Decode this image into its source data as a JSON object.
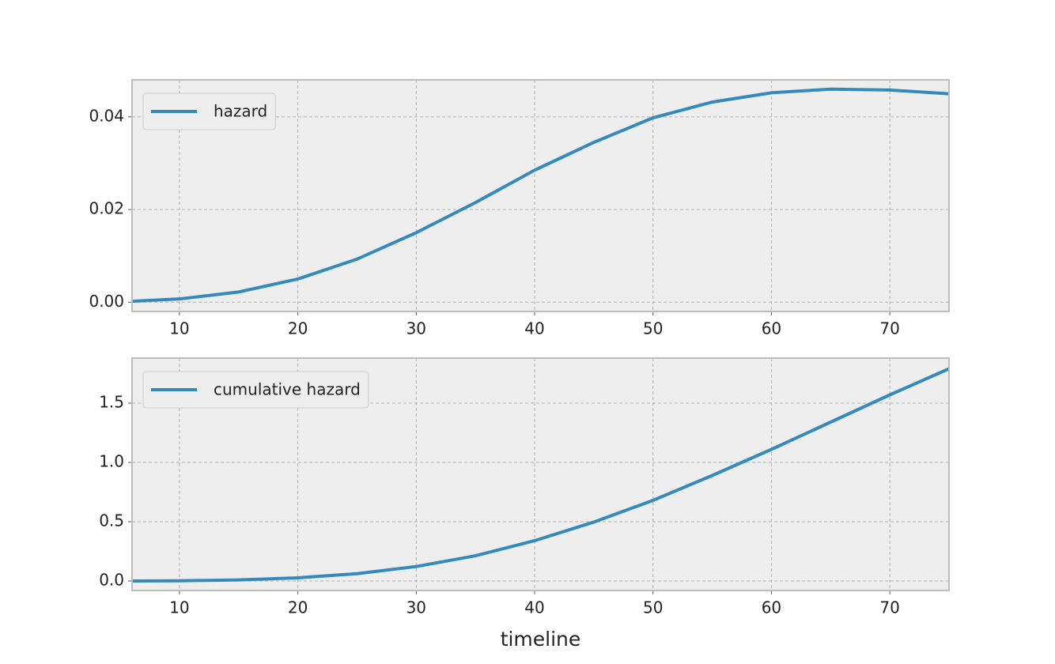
{
  "chart_data": [
    {
      "type": "line",
      "x": [
        6,
        10,
        15,
        20,
        25,
        30,
        35,
        40,
        45,
        50,
        55,
        60,
        65,
        70,
        75
      ],
      "series": [
        {
          "name": "hazard",
          "color": "#348abd",
          "values": [
            0.0002,
            0.0007,
            0.0022,
            0.005,
            0.0093,
            0.015,
            0.0215,
            0.0285,
            0.0345,
            0.0398,
            0.0432,
            0.0452,
            0.046,
            0.0458,
            0.045
          ]
        }
      ],
      "xlim": [
        6,
        75
      ],
      "xticks": [
        10,
        20,
        30,
        40,
        50,
        60,
        70
      ],
      "ylim": [
        -0.002,
        0.048
      ],
      "yticks": [
        {
          "value": 0,
          "label": "0.00"
        },
        {
          "value": 0.02,
          "label": "0.02"
        },
        {
          "value": 0.04,
          "label": "0.04"
        }
      ],
      "grid": true,
      "legend": "upper left"
    },
    {
      "type": "line",
      "x": [
        6,
        10,
        15,
        20,
        25,
        30,
        35,
        40,
        45,
        50,
        55,
        60,
        65,
        70,
        75
      ],
      "series": [
        {
          "name": "cumulative hazard",
          "color": "#348abd",
          "values": [
            0,
            0.002,
            0.009,
            0.027,
            0.062,
            0.122,
            0.213,
            0.34,
            0.497,
            0.68,
            0.89,
            1.11,
            1.34,
            1.57,
            1.79
          ]
        }
      ],
      "xlim": [
        6,
        75
      ],
      "xticks": [
        10,
        20,
        30,
        40,
        50,
        60,
        70
      ],
      "ylim": [
        -0.08,
        1.88
      ],
      "yticks": [
        {
          "value": 0,
          "label": "0.0"
        },
        0.5,
        {
          "value": 1,
          "label": "1.0"
        },
        1.5
      ],
      "xlabel": "timeline",
      "grid": true,
      "legend": "upper left"
    }
  ]
}
